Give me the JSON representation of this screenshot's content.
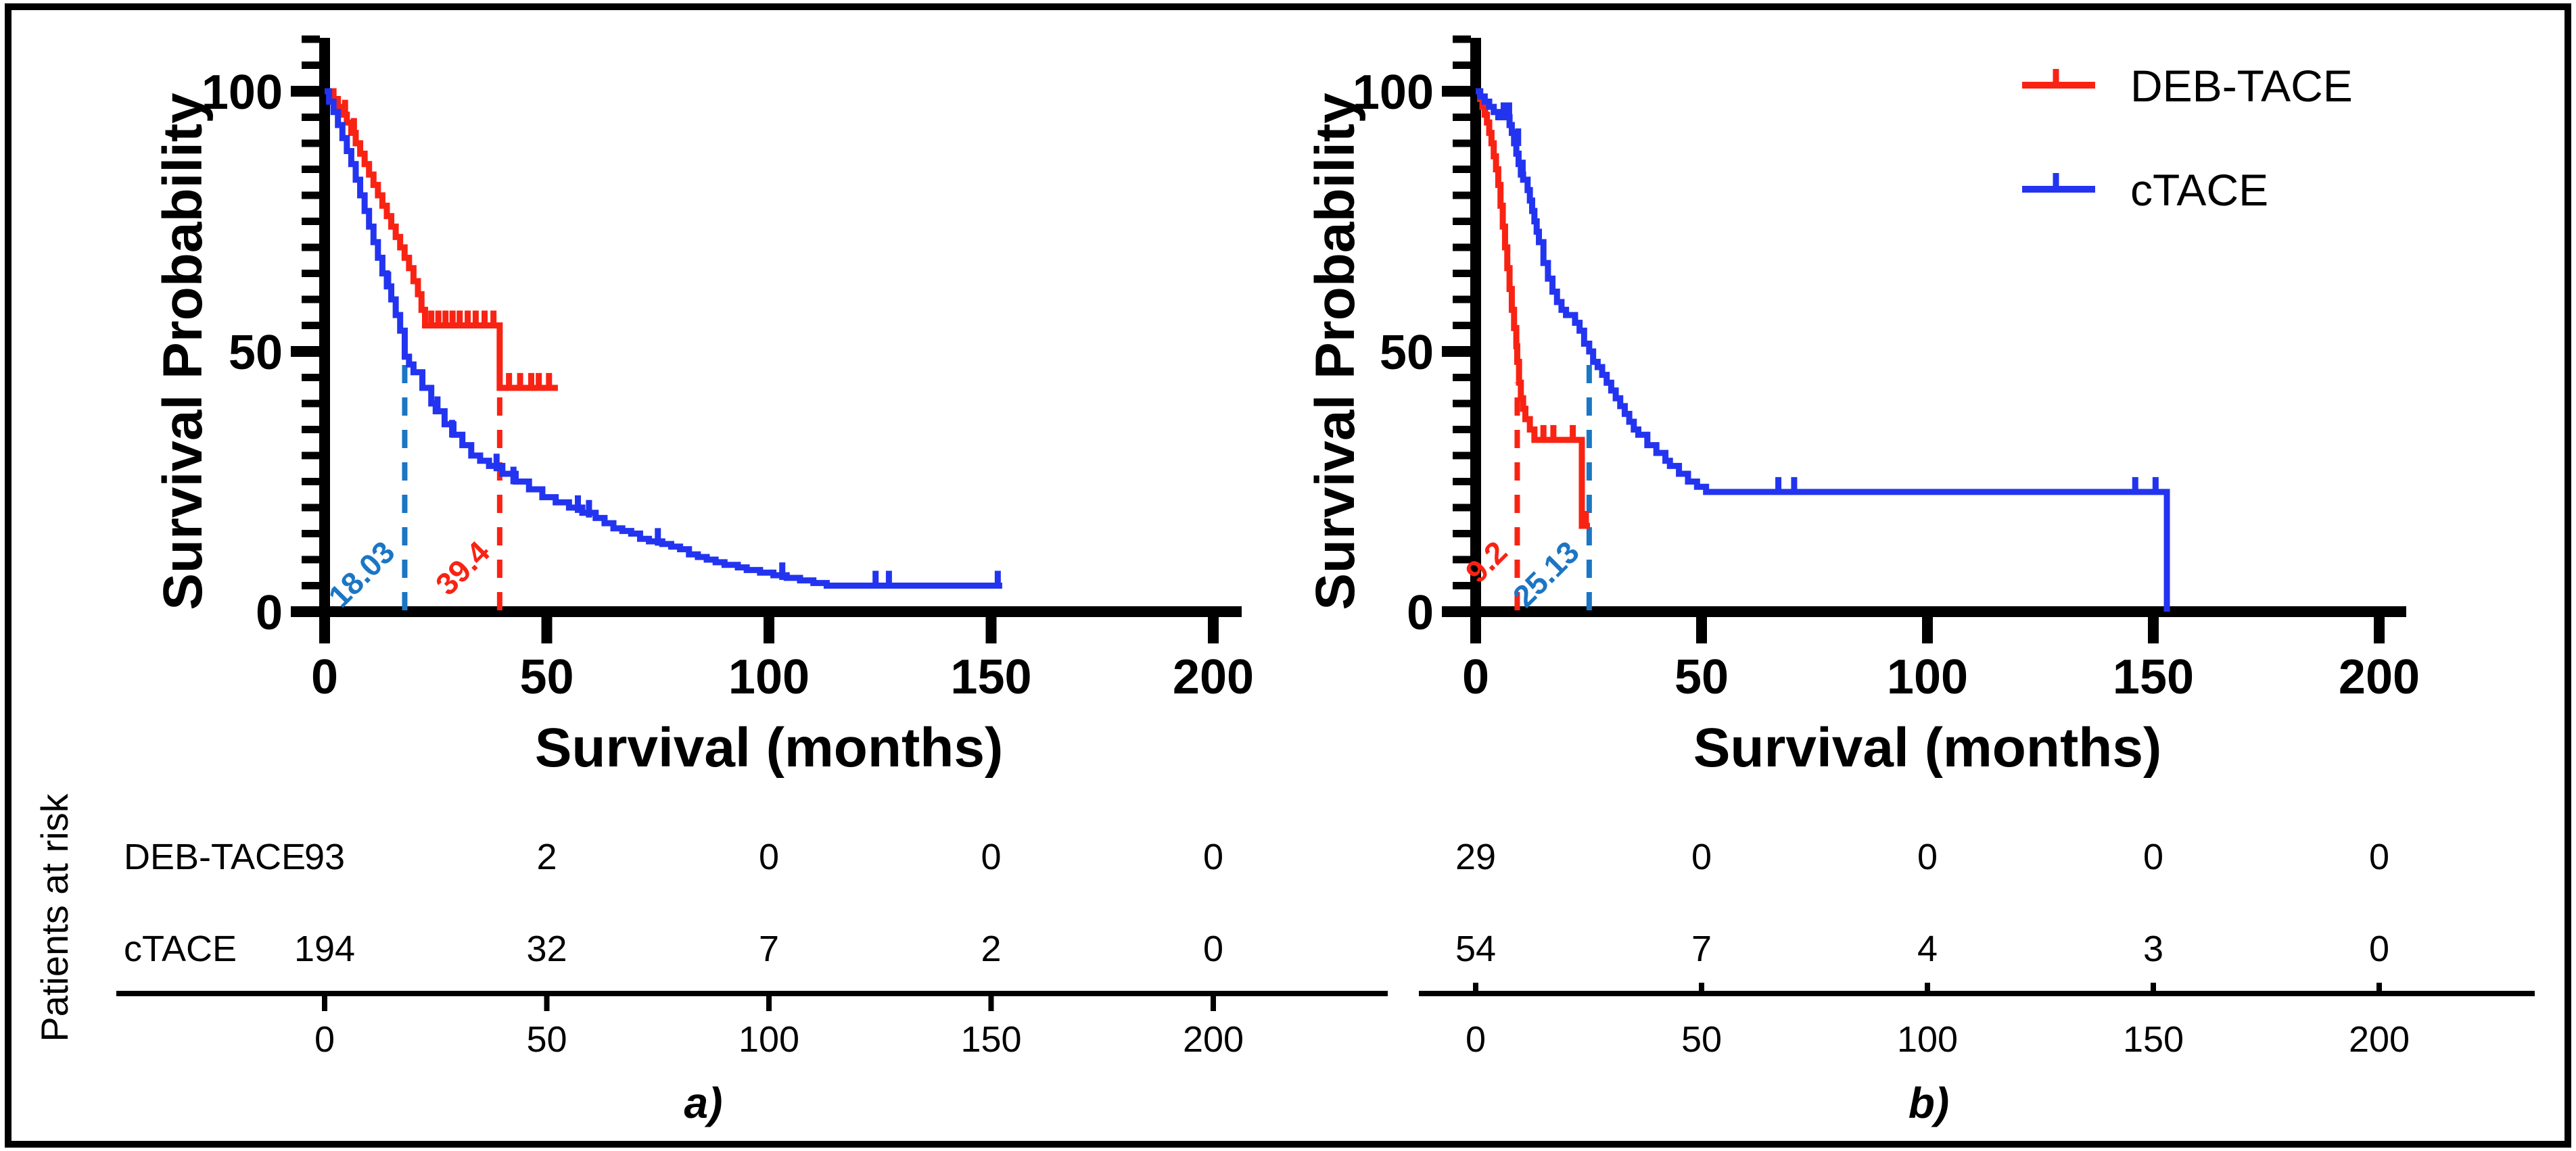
{
  "figure": {
    "background": "#ffffff",
    "border_color": "#000000",
    "patients_at_risk_label": "Patients at risk",
    "panel_a_label": "a)",
    "panel_b_label": "b)"
  },
  "legend": {
    "position": "top-right-of-panel-b",
    "items": [
      {
        "label": "DEB-TACE",
        "color": "#f92313",
        "marker": "line-with-censor-tick"
      },
      {
        "label": "cTACE",
        "color": "#2334f0",
        "marker": "line-with-censor-tick"
      }
    ]
  },
  "chart_data": [
    {
      "type": "line",
      "subtype": "kaplan-meier-step",
      "panel_label": "a)",
      "xlabel": "Survival (months)",
      "ylabel": "Survival Probability",
      "xlim": [
        0,
        200
      ],
      "ylim": [
        0,
        100
      ],
      "xticks": [
        0,
        50,
        100,
        150,
        200
      ],
      "yticks": [
        0,
        50,
        100
      ],
      "y_minor_step": 5,
      "grid": false,
      "legend_visible": false,
      "series": [
        {
          "name": "DEB-TACE",
          "color": "#f92313",
          "median_months": 39.4,
          "median_label": "39.4",
          "median_label_color": "#f92313",
          "median_line_top": 43,
          "steps": [
            [
              0,
              100
            ],
            [
              2,
              98.5
            ],
            [
              3,
              97
            ],
            [
              4,
              95.5
            ],
            [
              5,
              94
            ],
            [
              6,
              92
            ],
            [
              7,
              90
            ],
            [
              8,
              88
            ],
            [
              9,
              86
            ],
            [
              10,
              84
            ],
            [
              11,
              82
            ],
            [
              12,
              80
            ],
            [
              13,
              78
            ],
            [
              14,
              76
            ],
            [
              15,
              74
            ],
            [
              16,
              72
            ],
            [
              17,
              70
            ],
            [
              18,
              68
            ],
            [
              19,
              66
            ],
            [
              20,
              63.5
            ],
            [
              21,
              61
            ],
            [
              21.8,
              58
            ],
            [
              22.6,
              55
            ],
            [
              39.4,
              43
            ],
            [
              52.5,
              43
            ]
          ],
          "censors": [
            [
              4.6,
              95.5
            ],
            [
              6.6,
              92
            ],
            [
              24,
              55
            ],
            [
              25.6,
              55
            ],
            [
              27.2,
              55
            ],
            [
              28.8,
              55
            ],
            [
              30.4,
              55
            ],
            [
              32.2,
              55
            ],
            [
              34,
              55
            ],
            [
              36,
              55
            ],
            [
              38,
              55
            ],
            [
              41.5,
              43
            ],
            [
              44,
              43
            ],
            [
              46.5,
              43
            ],
            [
              48.2,
              43
            ],
            [
              50.5,
              43
            ]
          ]
        },
        {
          "name": "cTACE",
          "color": "#2334f0",
          "median_months": 18.03,
          "median_label": "18.03",
          "median_label_color": "#1b76c4",
          "median_line_top": 48.5,
          "steps": [
            [
              0,
              100
            ],
            [
              1,
              98
            ],
            [
              2,
              96
            ],
            [
              3,
              93.5
            ],
            [
              4,
              91
            ],
            [
              5,
              88.5
            ],
            [
              6,
              86
            ],
            [
              7,
              83
            ],
            [
              8,
              80
            ],
            [
              9,
              77
            ],
            [
              10,
              74
            ],
            [
              11,
              71
            ],
            [
              12,
              68
            ],
            [
              13,
              65
            ],
            [
              14,
              62.5
            ],
            [
              15,
              60
            ],
            [
              16,
              57
            ],
            [
              17,
              54
            ],
            [
              18.03,
              49
            ],
            [
              19,
              47.5
            ],
            [
              20,
              46
            ],
            [
              22,
              43
            ],
            [
              24,
              40
            ],
            [
              25,
              38.5
            ],
            [
              27,
              36
            ],
            [
              29,
              34
            ],
            [
              31,
              32
            ],
            [
              33,
              30
            ],
            [
              35,
              29
            ],
            [
              37,
              28
            ],
            [
              40,
              26.5
            ],
            [
              43,
              25
            ],
            [
              46,
              23.5
            ],
            [
              49,
              22
            ],
            [
              52,
              21
            ],
            [
              55,
              20
            ],
            [
              58,
              19
            ],
            [
              61,
              18
            ],
            [
              63,
              17
            ],
            [
              65,
              16
            ],
            [
              67,
              15.5
            ],
            [
              69,
              15
            ],
            [
              71,
              14
            ],
            [
              73,
              13.5
            ],
            [
              76,
              13
            ],
            [
              78,
              12.5
            ],
            [
              80,
              12
            ],
            [
              82,
              11
            ],
            [
              84,
              10.5
            ],
            [
              86,
              10
            ],
            [
              88,
              9.5
            ],
            [
              90,
              9
            ],
            [
              93,
              8.5
            ],
            [
              95,
              8
            ],
            [
              98,
              7.5
            ],
            [
              101,
              7
            ],
            [
              104,
              6.5
            ],
            [
              107,
              6
            ],
            [
              110,
              5.5
            ],
            [
              113,
              5
            ],
            [
              152.5,
              5
            ]
          ],
          "censors": [
            [
              14.3,
              62.5
            ],
            [
              25.4,
              38.5
            ],
            [
              28.7,
              34
            ],
            [
              38.7,
              27.5
            ],
            [
              42.5,
              25
            ],
            [
              57,
              19.5
            ],
            [
              59.5,
              18.6
            ],
            [
              75,
              13.2
            ],
            [
              103,
              6.6
            ],
            [
              124,
              5
            ],
            [
              127,
              5
            ],
            [
              151.5,
              5
            ]
          ]
        }
      ],
      "risk_table": {
        "x": [
          0,
          50,
          100,
          150,
          200
        ],
        "rows": [
          {
            "label": "DEB-TACE",
            "values": [
              "93",
              "2",
              "0",
              "0",
              "0"
            ]
          },
          {
            "label": "cTACE",
            "values": [
              "194",
              "32",
              "7",
              "2",
              "0"
            ]
          }
        ]
      }
    },
    {
      "type": "line",
      "subtype": "kaplan-meier-step",
      "panel_label": "b)",
      "xlabel": "Survival (months)",
      "ylabel": "Survival Probability",
      "xlim": [
        0,
        200
      ],
      "ylim": [
        0,
        100
      ],
      "xticks": [
        0,
        50,
        100,
        150,
        200
      ],
      "yticks": [
        0,
        50,
        100
      ],
      "y_minor_step": 5,
      "grid": false,
      "legend_visible": true,
      "series": [
        {
          "name": "DEB-TACE",
          "color": "#f92313",
          "median_months": 9.2,
          "median_label": "9.2",
          "median_label_color": "#f92313",
          "median_line_top": 44,
          "steps": [
            [
              0,
              100
            ],
            [
              1,
              98.5
            ],
            [
              1.5,
              97
            ],
            [
              2,
              95.5
            ],
            [
              2.5,
              94
            ],
            [
              3,
              92
            ],
            [
              3.5,
              90
            ],
            [
              4,
              87.5
            ],
            [
              4.5,
              85
            ],
            [
              5,
              82
            ],
            [
              5.5,
              78
            ],
            [
              6,
              74
            ],
            [
              6.5,
              70
            ],
            [
              7,
              66
            ],
            [
              7.5,
              62
            ],
            [
              8,
              58
            ],
            [
              8.5,
              54.5
            ],
            [
              9,
              51
            ],
            [
              9.2,
              48
            ],
            [
              9.6,
              44
            ],
            [
              10,
              41
            ],
            [
              10.5,
              39
            ],
            [
              11,
              37
            ],
            [
              12,
              35
            ],
            [
              13,
              33
            ],
            [
              23.5,
              16.5
            ],
            [
              25.3,
              16.5
            ]
          ],
          "censors": [
            [
              2.1,
              95.5
            ],
            [
              15,
              33
            ],
            [
              17.2,
              33
            ],
            [
              21.5,
              33
            ],
            [
              24.4,
              16.5
            ]
          ]
        },
        {
          "name": "cTACE",
          "color": "#2334f0",
          "median_months": 25.13,
          "median_label": "25.13",
          "median_label_color": "#1b76c4",
          "median_line_top": 50,
          "steps": [
            [
              0,
              100
            ],
            [
              1,
              99
            ],
            [
              2,
              98
            ],
            [
              3,
              97
            ],
            [
              4,
              96
            ],
            [
              5,
              95
            ],
            [
              7.5,
              93.5
            ],
            [
              8,
              92
            ],
            [
              8.5,
              90
            ],
            [
              9,
              88
            ],
            [
              9.5,
              86
            ],
            [
              10,
              84
            ],
            [
              10.5,
              83
            ],
            [
              11.5,
              81
            ],
            [
              12,
              79
            ],
            [
              12.5,
              77
            ],
            [
              13,
              75
            ],
            [
              13.5,
              73
            ],
            [
              14,
              71
            ],
            [
              15,
              67
            ],
            [
              16,
              64
            ],
            [
              17,
              61.5
            ],
            [
              18,
              59.5
            ],
            [
              19,
              58
            ],
            [
              20,
              57
            ],
            [
              22,
              55.5
            ],
            [
              23,
              54
            ],
            [
              24,
              51.5
            ],
            [
              25.13,
              50
            ],
            [
              26,
              48
            ],
            [
              27,
              47
            ],
            [
              28,
              45.5
            ],
            [
              29,
              44
            ],
            [
              30,
              42.5
            ],
            [
              31,
              41
            ],
            [
              32,
              39.5
            ],
            [
              33,
              38
            ],
            [
              34,
              36.5
            ],
            [
              35,
              35
            ],
            [
              36,
              34
            ],
            [
              38,
              32
            ],
            [
              40,
              30.5
            ],
            [
              42,
              29
            ],
            [
              43,
              28
            ],
            [
              45,
              26.5
            ],
            [
              47,
              25
            ],
            [
              49,
              24
            ],
            [
              51,
              23
            ],
            [
              153,
              23
            ],
            [
              153,
              0
            ]
          ],
          "censors": [
            [
              6.2,
              95
            ],
            [
              7.4,
              95
            ],
            [
              9.4,
              90
            ],
            [
              10.4,
              84
            ],
            [
              67,
              23
            ],
            [
              70.5,
              23
            ],
            [
              146,
              23
            ],
            [
              150.5,
              23
            ]
          ]
        }
      ],
      "risk_table": {
        "x": [
          0,
          50,
          100,
          150,
          200
        ],
        "rows": [
          {
            "label": "",
            "values": [
              "29",
              "0",
              "0",
              "0",
              "0"
            ]
          },
          {
            "label": "",
            "values": [
              "54",
              "7",
              "4",
              "3",
              "0"
            ]
          }
        ]
      }
    }
  ]
}
